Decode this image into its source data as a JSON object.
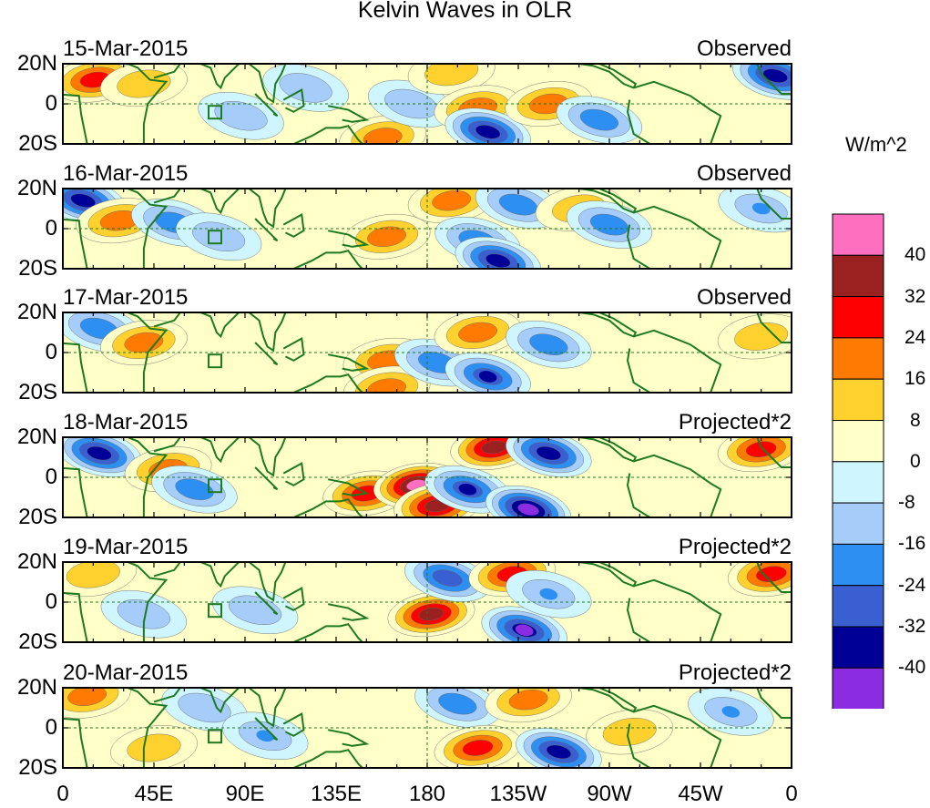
{
  "title": "Kelvin Waves in OLR",
  "units": "W/m^2",
  "lat_ticks": [
    "20N",
    "0",
    "20S"
  ],
  "lon_ticks": [
    "0",
    "45E",
    "90E",
    "135E",
    "180",
    "135W",
    "90W",
    "45W",
    "0"
  ],
  "panels": [
    {
      "date": "15-Mar-2015",
      "type": "Observed"
    },
    {
      "date": "16-Mar-2015",
      "type": "Observed"
    },
    {
      "date": "17-Mar-2015",
      "type": "Observed"
    },
    {
      "date": "18-Mar-2015",
      "type": "Projected*2"
    },
    {
      "date": "19-Mar-2015",
      "type": "Projected*2"
    },
    {
      "date": "20-Mar-2015",
      "type": "Projected*2"
    }
  ],
  "colorbar": {
    "labels": [
      "40",
      "32",
      "24",
      "16",
      "8",
      "0",
      "-8",
      "-16",
      "-24",
      "-32",
      "-40"
    ],
    "colors": [
      "#ff6fc0",
      "#9b2020",
      "#ff0000",
      "#ff7a00",
      "#ffd12e",
      "#ffffc8",
      "#cff5ff",
      "#a6cdfa",
      "#2e8ff2",
      "#3a5fd0",
      "#000096",
      "#8b2be2"
    ]
  },
  "chart_data": {
    "type": "heatmap",
    "title": "Kelvin Waves in OLR",
    "colorbar_title": "W/m^2",
    "x_ticks": [
      "0",
      "45E",
      "90E",
      "135E",
      "180",
      "135W",
      "90W",
      "45W",
      "0"
    ],
    "xlim": [
      0,
      360
    ],
    "y_ticks": [
      "20N",
      "0",
      "20S"
    ],
    "ylim": [
      -20,
      20
    ],
    "levels": [
      -40,
      -32,
      -24,
      -16,
      -8,
      0,
      8,
      16,
      24,
      32,
      40
    ],
    "panels": [
      {
        "date": "15-Mar-2015",
        "type": "Observed",
        "features": [
          {
            "lon": 16,
            "lat": 12,
            "value": 28
          },
          {
            "lon": 40,
            "lat": 10,
            "value": 12
          },
          {
            "lon": 88,
            "lat": -6,
            "value": -10
          },
          {
            "lon": 120,
            "lat": 8,
            "value": -10
          },
          {
            "lon": 158,
            "lat": -17,
            "value": 20
          },
          {
            "lon": 172,
            "lat": 0,
            "value": -10
          },
          {
            "lon": 192,
            "lat": 16,
            "value": 12
          },
          {
            "lon": 205,
            "lat": -2,
            "value": 18
          },
          {
            "lon": 210,
            "lat": -14,
            "value": -38
          },
          {
            "lon": 240,
            "lat": 0,
            "value": 20
          },
          {
            "lon": 265,
            "lat": -8,
            "value": -18
          },
          {
            "lon": 352,
            "lat": 14,
            "value": -36
          }
        ]
      },
      {
        "date": "16-Mar-2015",
        "type": "Observed",
        "features": [
          {
            "lon": 10,
            "lat": 14,
            "value": -34
          },
          {
            "lon": 28,
            "lat": 4,
            "value": 20
          },
          {
            "lon": 55,
            "lat": 3,
            "value": -20
          },
          {
            "lon": 77,
            "lat": -4,
            "value": -14
          },
          {
            "lon": 160,
            "lat": -4,
            "value": 24
          },
          {
            "lon": 192,
            "lat": 14,
            "value": 24
          },
          {
            "lon": 205,
            "lat": -6,
            "value": -22
          },
          {
            "lon": 215,
            "lat": -16,
            "value": -36
          },
          {
            "lon": 225,
            "lat": 12,
            "value": -20
          },
          {
            "lon": 255,
            "lat": 10,
            "value": 16
          },
          {
            "lon": 270,
            "lat": 2,
            "value": -18
          },
          {
            "lon": 345,
            "lat": 10,
            "value": -16
          }
        ]
      },
      {
        "date": "17-Mar-2015",
        "type": "Observed",
        "features": [
          {
            "lon": 18,
            "lat": 12,
            "value": -20
          },
          {
            "lon": 40,
            "lat": 5,
            "value": 18
          },
          {
            "lon": 160,
            "lat": -4,
            "value": 22
          },
          {
            "lon": 160,
            "lat": -18,
            "value": 20
          },
          {
            "lon": 185,
            "lat": -5,
            "value": -18
          },
          {
            "lon": 205,
            "lat": 10,
            "value": 24
          },
          {
            "lon": 210,
            "lat": -12,
            "value": -32
          },
          {
            "lon": 240,
            "lat": 4,
            "value": -20
          },
          {
            "lon": 345,
            "lat": 8,
            "value": 10
          }
        ]
      },
      {
        "date": "18-Mar-2015",
        "type": "Projected*2",
        "features": [
          {
            "lon": 18,
            "lat": 12,
            "value": -36
          },
          {
            "lon": 52,
            "lat": 4,
            "value": 24
          },
          {
            "lon": 65,
            "lat": -6,
            "value": -22
          },
          {
            "lon": 150,
            "lat": -8,
            "value": 32
          },
          {
            "lon": 175,
            "lat": -4,
            "value": 44
          },
          {
            "lon": 185,
            "lat": -14,
            "value": 40
          },
          {
            "lon": 200,
            "lat": -6,
            "value": -32
          },
          {
            "lon": 213,
            "lat": 15,
            "value": 40
          },
          {
            "lon": 230,
            "lat": -16,
            "value": -48
          },
          {
            "lon": 240,
            "lat": 12,
            "value": -36
          },
          {
            "lon": 345,
            "lat": 14,
            "value": 30
          }
        ]
      },
      {
        "date": "19-Mar-2015",
        "type": "Projected*2",
        "features": [
          {
            "lon": 15,
            "lat": 14,
            "value": 16
          },
          {
            "lon": 40,
            "lat": -6,
            "value": -14
          },
          {
            "lon": 95,
            "lat": -4,
            "value": -12
          },
          {
            "lon": 182,
            "lat": -6,
            "value": 34
          },
          {
            "lon": 190,
            "lat": 12,
            "value": -26
          },
          {
            "lon": 222,
            "lat": 14,
            "value": 26
          },
          {
            "lon": 228,
            "lat": -14,
            "value": -40
          },
          {
            "lon": 240,
            "lat": 4,
            "value": -16
          },
          {
            "lon": 350,
            "lat": 14,
            "value": 28
          }
        ]
      },
      {
        "date": "20-Mar-2015",
        "type": "Projected*2",
        "features": [
          {
            "lon": 12,
            "lat": 16,
            "value": 18
          },
          {
            "lon": 45,
            "lat": -10,
            "value": 14
          },
          {
            "lon": 70,
            "lat": 10,
            "value": -10
          },
          {
            "lon": 100,
            "lat": -4,
            "value": -16
          },
          {
            "lon": 195,
            "lat": 12,
            "value": -22
          },
          {
            "lon": 205,
            "lat": -10,
            "value": 30
          },
          {
            "lon": 230,
            "lat": 14,
            "value": 22
          },
          {
            "lon": 245,
            "lat": -12,
            "value": -34
          },
          {
            "lon": 280,
            "lat": -2,
            "value": 12
          },
          {
            "lon": 330,
            "lat": 8,
            "value": -16
          }
        ]
      }
    ]
  }
}
